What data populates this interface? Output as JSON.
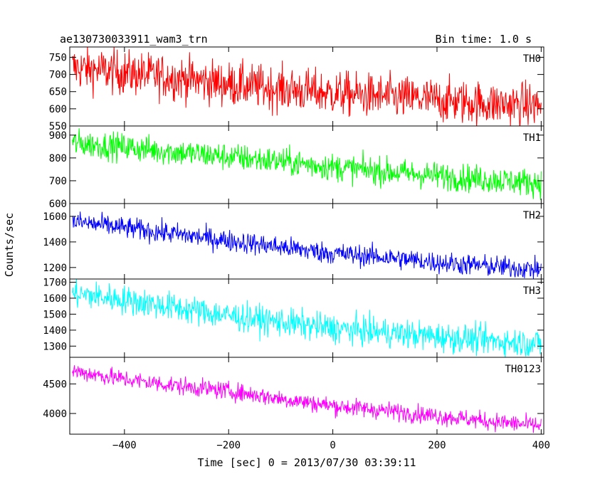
{
  "header": {
    "title": "ae130730033911_wam3_trn",
    "bin_time": "Bin time: 1.0 s"
  },
  "chart_data": {
    "type": "line",
    "title": "ae130730033911_wam3_trn",
    "subtitle": "Bin time: 1.0 s",
    "xlabel": "Time [sec] 0 = 2013/07/30 03:39:11",
    "ylabel": "Counts/sec",
    "xlim": [
      -505,
      405
    ],
    "x_ticks": [
      -400,
      -200,
      0,
      200,
      400
    ],
    "x_tick_labels": [
      "−400",
      "−200",
      "0",
      "200",
      "400"
    ],
    "grid": false,
    "panels": [
      {
        "name": "TH0",
        "color": "#ff0000",
        "ylim": [
          550,
          780
        ],
        "y_ticks": [
          550,
          600,
          650,
          700,
          750
        ],
        "x": [
          -500,
          -400,
          -300,
          -200,
          -100,
          0,
          100,
          200,
          300,
          400
        ],
        "mean": [
          720,
          705,
          690,
          672,
          658,
          645,
          635,
          625,
          615,
          610
        ],
        "noise": 32
      },
      {
        "name": "TH1",
        "color": "#00ff00",
        "ylim": [
          600,
          940
        ],
        "y_ticks": [
          600,
          700,
          800,
          900
        ],
        "x": [
          -500,
          -400,
          -300,
          -200,
          -100,
          0,
          100,
          200,
          300,
          400
        ],
        "mean": [
          865,
          848,
          825,
          805,
          785,
          760,
          740,
          722,
          705,
          690
        ],
        "noise": 30
      },
      {
        "name": "TH2",
        "color": "#0000ff",
        "ylim": [
          1110,
          1700
        ],
        "y_ticks": [
          1200,
          1400,
          1600
        ],
        "x": [
          -500,
          -400,
          -300,
          -200,
          -100,
          0,
          100,
          200,
          300,
          400
        ],
        "mean": [
          1560,
          1510,
          1460,
          1410,
          1360,
          1310,
          1280,
          1240,
          1210,
          1185
        ],
        "noise": 42
      },
      {
        "name": "TH3",
        "color": "#00ffff",
        "ylim": [
          1230,
          1720
        ],
        "y_ticks": [
          1300,
          1400,
          1500,
          1600,
          1700
        ],
        "x": [
          -500,
          -400,
          -300,
          -200,
          -100,
          0,
          100,
          200,
          300,
          400
        ],
        "mean": [
          1630,
          1590,
          1540,
          1490,
          1450,
          1410,
          1385,
          1360,
          1335,
          1315
        ],
        "noise": 45
      },
      {
        "name": "TH0123",
        "color": "#ff00ff",
        "ylim": [
          3650,
          4950
        ],
        "y_ticks": [
          4000,
          4500
        ],
        "x": [
          -500,
          -400,
          -300,
          -200,
          -100,
          0,
          100,
          200,
          300,
          400
        ],
        "mean": [
          4720,
          4580,
          4470,
          4380,
          4250,
          4130,
          4050,
          3960,
          3870,
          3790
        ],
        "noise": 75
      }
    ]
  }
}
